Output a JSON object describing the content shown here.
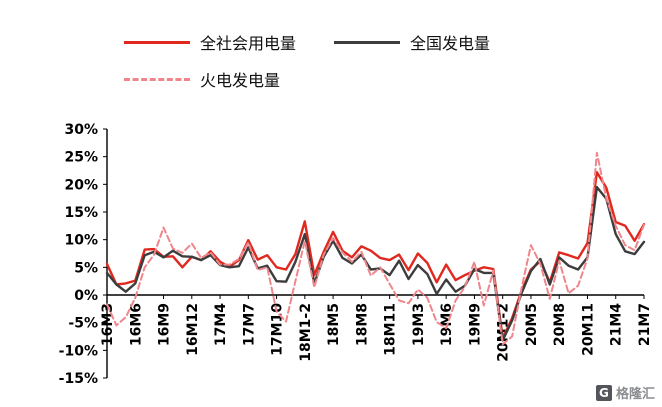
{
  "watermark": {
    "icon": "G",
    "text": "格隆汇"
  },
  "chart_data": {
    "type": "line",
    "unit": "%",
    "grid": false,
    "legend_position": "top",
    "ylim": [
      -15,
      30
    ],
    "yticks": [
      30,
      25,
      20,
      15,
      10,
      5,
      0,
      -5,
      -10,
      -15
    ],
    "ytick_suffix": "%",
    "x": [
      "16M3",
      "16M4",
      "16M5",
      "16M6",
      "16M7",
      "16M8",
      "16M9",
      "16M10",
      "16M11",
      "16M12",
      "17M1-2",
      "17M3",
      "17M4",
      "17M5",
      "17M6",
      "17M7",
      "17M8",
      "17M9",
      "17M10",
      "17M11",
      "17M12",
      "18M1-2",
      "18M3",
      "18M4",
      "18M5",
      "18M6",
      "18M7",
      "18M8",
      "18M9",
      "18M10",
      "18M11",
      "18M12",
      "19M1-2",
      "19M3",
      "19M4",
      "19M5",
      "19M6",
      "19M7",
      "19M8",
      "19M9",
      "19M10",
      "19M11",
      "20M1-2",
      "20M3",
      "20M4",
      "20M5",
      "20M6",
      "20M7",
      "20M8",
      "20M9",
      "20M10",
      "20M11",
      "21M1-2",
      "21M3",
      "21M4",
      "21M5",
      "21M6",
      "21M7"
    ],
    "x_tick_labels": [
      "16M3",
      "16M6",
      "16M9",
      "16M12",
      "17M4",
      "17M7",
      "17M10",
      "18M1-2",
      "18M5",
      "18M8",
      "18M11",
      "19M3",
      "19M6",
      "19M9",
      "20M1-2",
      "20M5",
      "20M8",
      "20M11",
      "21M4",
      "21M7"
    ],
    "x_tick_every": 3,
    "series": [
      {
        "name": "全社会用电量",
        "color": "#e0281e",
        "style": "solid",
        "values": [
          5.6,
          1.9,
          2.1,
          2.6,
          8.2,
          8.3,
          6.9,
          7.0,
          5.0,
          6.9,
          6.3,
          7.9,
          6.0,
          5.1,
          6.3,
          9.9,
          6.4,
          7.2,
          5.0,
          4.6,
          7.4,
          13.3,
          3.6,
          7.8,
          11.4,
          8.0,
          6.8,
          8.8,
          8.0,
          6.7,
          6.3,
          7.3,
          4.5,
          7.5,
          5.8,
          2.3,
          5.5,
          2.7,
          3.6,
          4.4,
          5.0,
          4.7,
          -7.8,
          -4.2,
          0.7,
          4.6,
          6.1,
          2.3,
          7.7,
          7.2,
          6.6,
          9.4,
          22.2,
          19.4,
          13.2,
          12.5,
          9.8,
          12.8
        ]
      },
      {
        "name": "全国发电量",
        "color": "#3d3d3d",
        "style": "solid",
        "values": [
          4.0,
          1.9,
          0.6,
          2.1,
          7.2,
          7.8,
          6.8,
          8.0,
          7.0,
          6.9,
          6.3,
          7.2,
          5.4,
          5.0,
          5.2,
          8.6,
          4.8,
          5.3,
          2.5,
          2.4,
          6.0,
          11.0,
          2.1,
          6.9,
          9.8,
          6.7,
          5.7,
          7.3,
          4.6,
          4.8,
          3.6,
          6.2,
          2.9,
          5.4,
          3.8,
          0.2,
          2.8,
          0.6,
          1.7,
          4.7,
          4.0,
          4.0,
          -8.2,
          -4.6,
          0.3,
          4.3,
          6.5,
          1.9,
          6.8,
          5.3,
          4.6,
          6.8,
          19.5,
          17.4,
          11.0,
          7.9,
          7.4,
          9.6
        ]
      },
      {
        "name": "火电发电量",
        "color": "#ef868b",
        "style": "dashed",
        "values": [
          -1.7,
          -5.5,
          -4.0,
          -0.5,
          5.0,
          7.3,
          12.2,
          8.4,
          7.6,
          9.3,
          6.7,
          7.7,
          5.5,
          5.5,
          6.5,
          9.5,
          4.5,
          5.0,
          -3.0,
          -4.8,
          2.5,
          9.8,
          1.4,
          7.3,
          10.3,
          7.7,
          6.0,
          7.8,
          3.5,
          5.0,
          2.0,
          -1.0,
          -1.5,
          1.0,
          -0.5,
          -4.9,
          -6.0,
          -1.0,
          1.5,
          6.0,
          -1.9,
          4.4,
          -8.9,
          -7.5,
          1.2,
          9.0,
          5.6,
          -0.7,
          6.2,
          0.3,
          1.7,
          6.6,
          25.7,
          17.5,
          12.5,
          9.0,
          8.1,
          12.7
        ]
      }
    ]
  }
}
